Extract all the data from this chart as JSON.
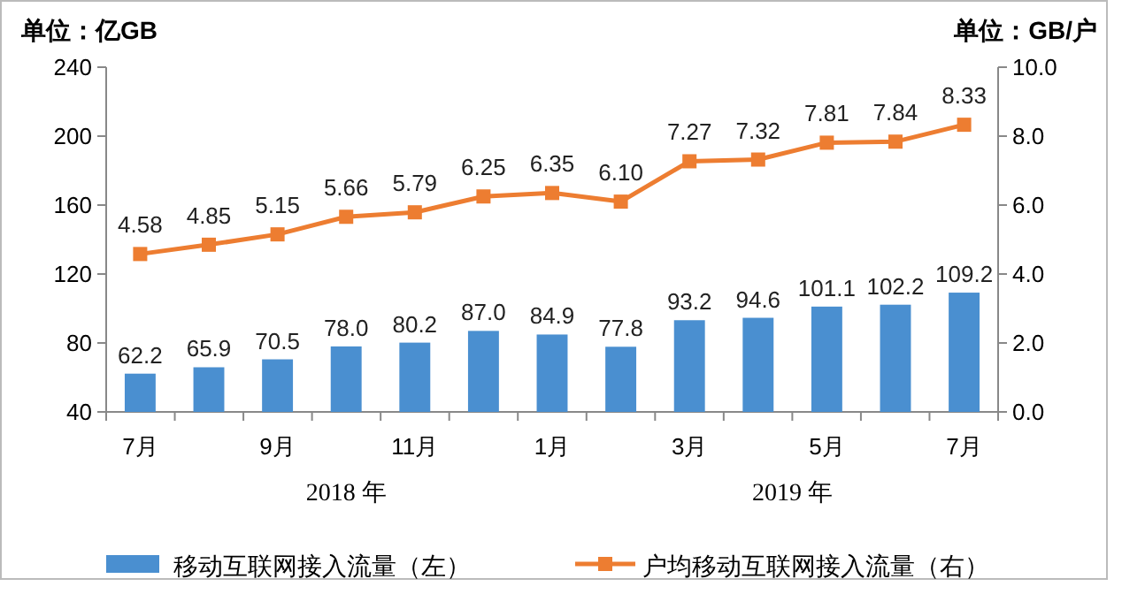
{
  "chart_data": {
    "type": "bar",
    "ylabel": "单位：亿GB",
    "y2label": "单位：GB/户",
    "categories": [
      "7月",
      null,
      "9月",
      null,
      "11月",
      null,
      "1月",
      null,
      "3月",
      null,
      "5月",
      null,
      "7月"
    ],
    "series": [
      {
        "name": "移动互联网接入流量（左）",
        "color": "#4a8fd0",
        "values": [
          62.2,
          65.9,
          70.5,
          78.0,
          80.2,
          87.0,
          84.9,
          77.8,
          93.2,
          94.6,
          101.1,
          102.2,
          109.2
        ],
        "value_labels": [
          "62.2",
          "65.9",
          "70.5",
          "78.0",
          "80.2",
          "87.0",
          "84.9",
          "77.8",
          "93.2",
          "94.6",
          "101.1",
          "102.2",
          "109.2"
        ]
      },
      {
        "name": "户均移动互联网接入流量（右）",
        "type": "line",
        "axis": "y2",
        "color": "#ed7d31",
        "marker": "square",
        "values": [
          4.58,
          4.85,
          5.15,
          5.66,
          5.79,
          6.25,
          6.35,
          6.1,
          7.27,
          7.32,
          7.81,
          7.84,
          8.33
        ],
        "value_labels": [
          "4.58",
          "4.85",
          "5.15",
          "5.66",
          "5.79",
          "6.25",
          "6.35",
          "6.10",
          "7.27",
          "7.32",
          "7.81",
          "7.84",
          "8.33"
        ]
      }
    ],
    "ylim": [
      40,
      240
    ],
    "yticks": [
      40,
      80,
      120,
      160,
      200,
      240
    ],
    "y2lim": [
      0,
      10
    ],
    "y2ticks": [
      {
        "value": 0,
        "label": "0.0"
      },
      {
        "value": 2,
        "label": "2.0"
      },
      {
        "value": 4,
        "label": "4.0"
      },
      {
        "value": 6,
        "label": "6.0"
      },
      {
        "value": 8,
        "label": "8.0"
      },
      {
        "value": 10,
        "label": "10.0"
      }
    ],
    "annotations": [
      "2018 年",
      "2019 年"
    ],
    "grid": false,
    "legend": "bottom"
  }
}
